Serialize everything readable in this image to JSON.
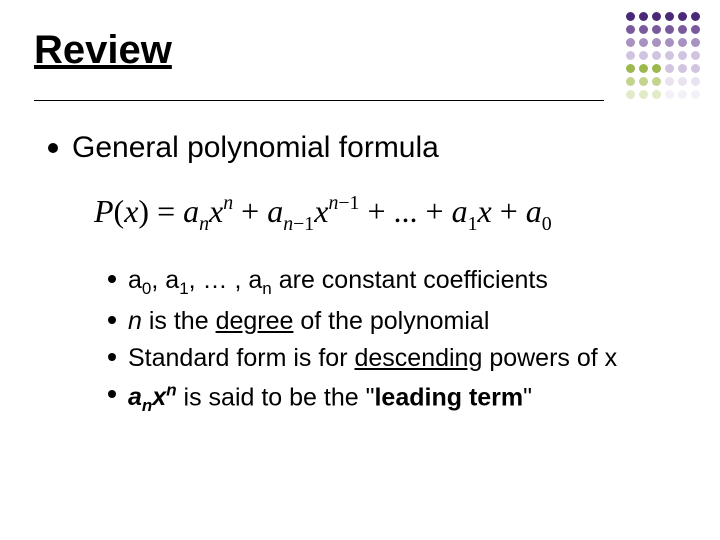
{
  "title": "Review",
  "heading": "General polynomial formula",
  "formula": {
    "func": "P",
    "var": "x",
    "coeff": "a",
    "deg": "n",
    "tail_coeff1": "1",
    "tail_coeff0": "0"
  },
  "points": {
    "p1": {
      "a": "a",
      "s0": "0",
      "s1": "1",
      "mid": ", … , ",
      "sn": "n",
      "rest": " are constant coefficients"
    },
    "p2": {
      "n": "n",
      "mid": " is the ",
      "degree": "degree",
      "rest": " of the polynomial"
    },
    "p3": {
      "pre": "Standard form is for ",
      "desc": "descending",
      "rest": " powers of x"
    },
    "p4": {
      "a": "a",
      "sn": "n",
      "x": "x",
      "mid": " is said to be the \"",
      "lead": "leading term",
      "end": "\""
    }
  },
  "deco": {
    "dot_size": 9,
    "gap": 4,
    "cols": 6,
    "rows": [
      [
        "#4a2a78",
        "#4a2a78",
        "#4a2a78",
        "#4a2a78",
        "#4a2a78",
        "#4a2a78"
      ],
      [
        "#7a5a9d",
        "#7a5a9d",
        "#7a5a9d",
        "#7a5a9d",
        "#7a5a9d",
        "#7a5a9d"
      ],
      [
        "#a893c0",
        "#a893c0",
        "#a893c0",
        "#a893c0",
        "#a893c0",
        "#a893c0"
      ],
      [
        "#d0c4e0",
        "#d0c4e0",
        "#d0c4e0",
        "#d0c4e0",
        "#d0c4e0",
        "#d0c4e0"
      ],
      [
        "#9db84c",
        "#9db84c",
        "#9db84c",
        "#d0c4e0",
        "#d0c4e0",
        "#d0c4e0"
      ],
      [
        "#c3d48e",
        "#c3d48e",
        "#c3d48e",
        "#e9e2f0",
        "#e9e2f0",
        "#e9e2f0"
      ],
      [
        "#e2ebc7",
        "#e2ebc7",
        "#e2ebc7",
        "#f4f0f8",
        "#f4f0f8",
        "#f4f0f8"
      ]
    ]
  },
  "colors": {
    "text": "#000000",
    "background": "#ffffff"
  },
  "typography": {
    "title_fontsize": 40,
    "heading_fontsize": 30,
    "formula_fontsize": 32,
    "bullet_fontsize": 25,
    "title_weight": "bold",
    "formula_family": "Times New Roman"
  }
}
